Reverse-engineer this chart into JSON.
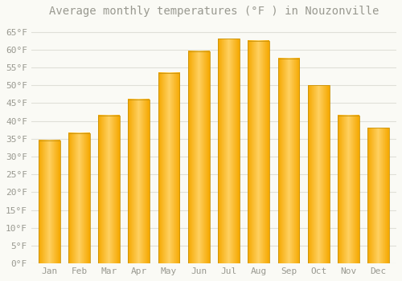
{
  "title": "Average monthly temperatures (°F ) in Nouzonville",
  "months": [
    "Jan",
    "Feb",
    "Mar",
    "Apr",
    "May",
    "Jun",
    "Jul",
    "Aug",
    "Sep",
    "Oct",
    "Nov",
    "Dec"
  ],
  "values": [
    34.5,
    36.5,
    41.5,
    46.0,
    53.5,
    59.5,
    63.0,
    62.5,
    57.5,
    50.0,
    41.5,
    38.0
  ],
  "bar_color_center": "#FFD060",
  "bar_color_edge": "#F5A800",
  "background_color": "#FAFAF5",
  "grid_color": "#E0E0D8",
  "text_color": "#999990",
  "ylim": [
    0,
    68
  ],
  "yticks": [
    0,
    5,
    10,
    15,
    20,
    25,
    30,
    35,
    40,
    45,
    50,
    55,
    60,
    65
  ],
  "title_fontsize": 10,
  "tick_fontsize": 8
}
